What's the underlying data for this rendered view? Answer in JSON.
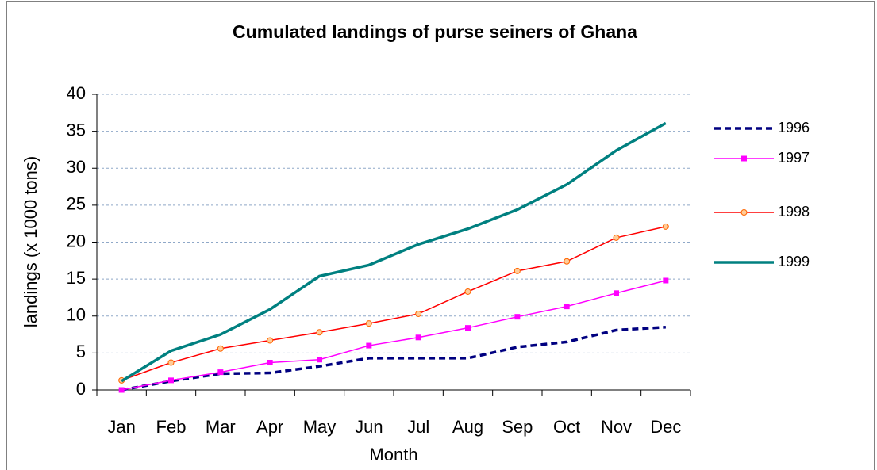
{
  "chart_data": {
    "type": "line",
    "title": "Cumulated landings of purse seiners of Ghana",
    "x_label": "Month",
    "y_label": "landings (x 1000 tons)",
    "categories": [
      "Jan",
      "Feb",
      "Mar",
      "Apr",
      "May",
      "Jun",
      "Jul",
      "Aug",
      "Sep",
      "Oct",
      "Nov",
      "Dec"
    ],
    "series": [
      {
        "name": "1996",
        "color": "#000080",
        "dashed": true,
        "marker": null,
        "values": [
          0,
          1.2,
          2.2,
          2.3,
          3.2,
          4.3,
          4.3,
          4.3,
          5.8,
          6.5,
          8.1,
          8.5
        ]
      },
      {
        "name": "1997",
        "color": "#ff00ff",
        "dashed": false,
        "marker": "square",
        "values": [
          0,
          1.3,
          2.4,
          3.7,
          4.1,
          6.0,
          7.1,
          8.4,
          9.9,
          11.3,
          13.1,
          14.8
        ]
      },
      {
        "name": "1998",
        "color": "#ff0000",
        "dashed": false,
        "marker": "circle",
        "values": [
          1.3,
          3.7,
          5.6,
          6.7,
          7.8,
          9.0,
          10.3,
          13.3,
          16.1,
          17.4,
          20.6,
          22.1
        ]
      },
      {
        "name": "1999",
        "color": "#008080",
        "dashed": false,
        "marker": null,
        "values": [
          1.2,
          5.3,
          7.5,
          10.9,
          15.4,
          16.9,
          19.7,
          21.8,
          24.4,
          27.8,
          32.4,
          36.1
        ]
      }
    ],
    "ylim": [
      0,
      40
    ],
    "yticks": [
      0,
      5,
      10,
      15,
      20,
      25,
      30,
      35,
      40
    ],
    "grid": true,
    "legend": "right"
  }
}
